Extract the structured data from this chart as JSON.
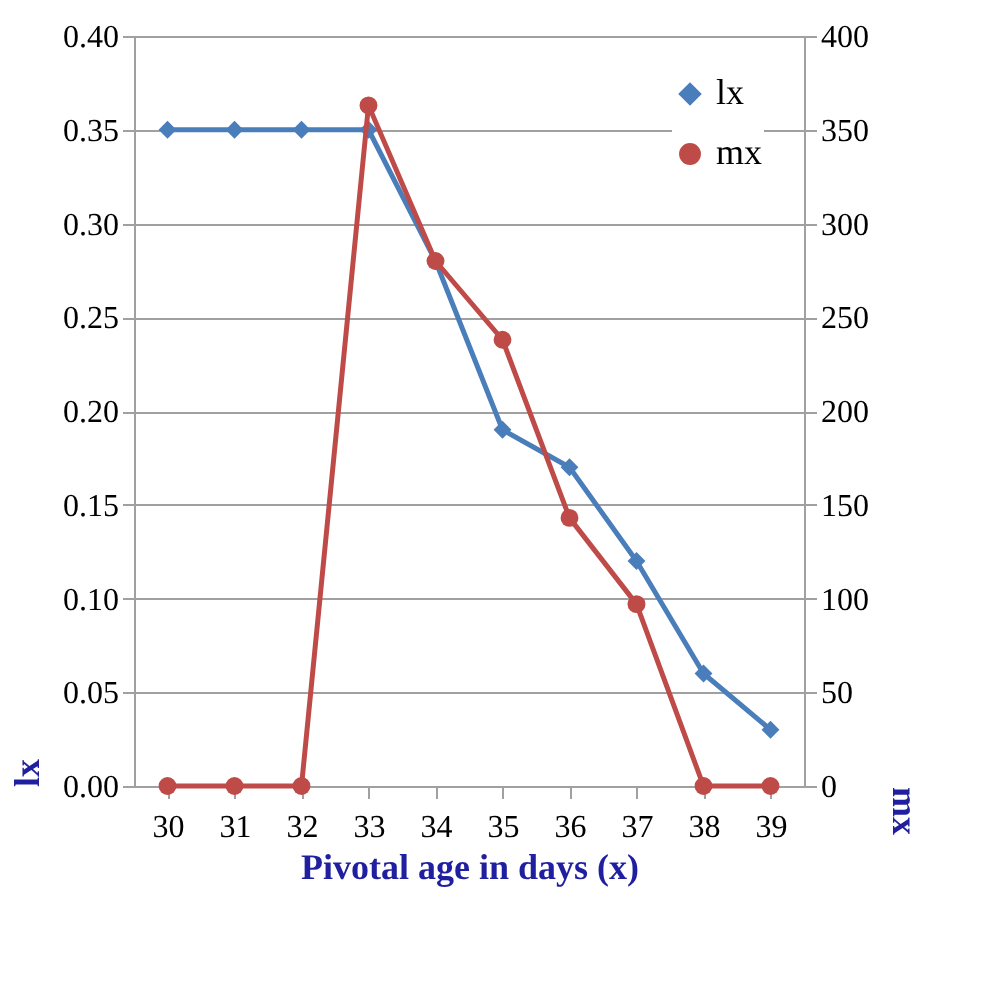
{
  "chart_data": {
    "type": "line",
    "xlabel": "Pivotal age in days (x)",
    "ylabel": "lx",
    "y2label": "mx",
    "categories": [
      "30",
      "31",
      "32",
      "33",
      "34",
      "35",
      "36",
      "37",
      "38",
      "39"
    ],
    "series": [
      {
        "name": "lx",
        "color": "#4a7ebb",
        "marker": "diamond",
        "values": [
          0.35,
          0.35,
          0.35,
          0.35,
          0.28,
          0.19,
          0.17,
          0.12,
          0.06,
          0.03
        ]
      },
      {
        "name": "mx",
        "color": "#be4b48",
        "marker": "circle",
        "axis": "y2",
        "values": [
          0,
          0,
          0,
          363,
          280,
          238,
          143,
          97,
          0,
          0
        ]
      }
    ],
    "ylim": [
      0,
      0.4
    ],
    "yticks": [
      {
        "value": 0,
        "label": "0.00"
      },
      {
        "value": 0.05,
        "label": "0.05"
      },
      {
        "value": 0.1,
        "label": "0.10"
      },
      {
        "value": 0.15,
        "label": "0.15"
      },
      {
        "value": 0.2,
        "label": "0.20"
      },
      {
        "value": 0.25,
        "label": "0.25"
      },
      {
        "value": 0.3,
        "label": "0.30"
      },
      {
        "value": 0.35,
        "label": "0.35"
      },
      {
        "value": 0.4,
        "label": "0.40"
      }
    ],
    "y2lim": [
      0,
      400
    ],
    "y2ticks": [
      0,
      50,
      100,
      150,
      200,
      250,
      300,
      350,
      400
    ],
    "grid": "y",
    "legend": "top right",
    "line_style": "solid"
  }
}
